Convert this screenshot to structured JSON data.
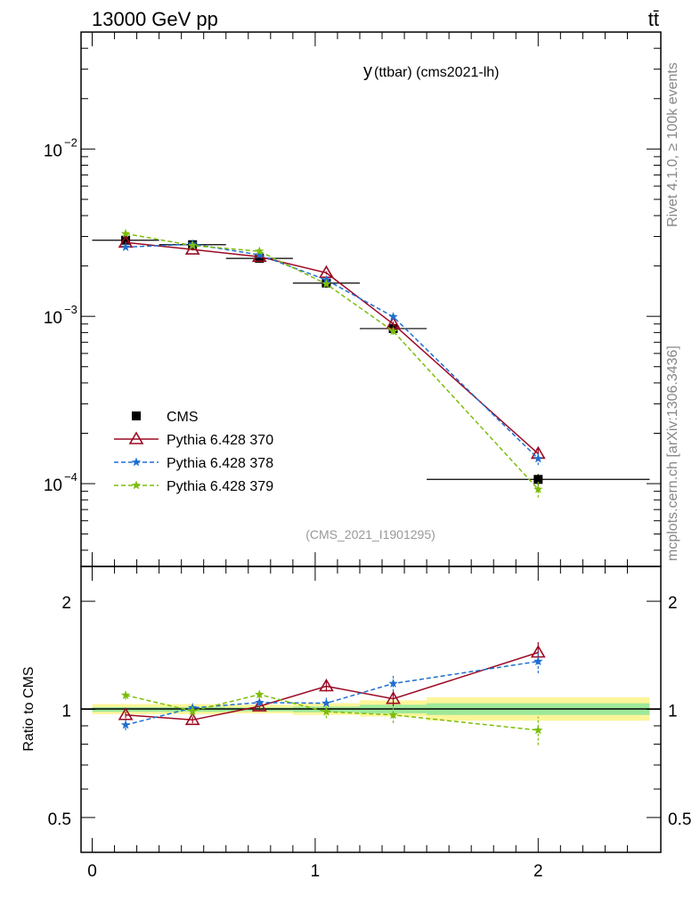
{
  "header": {
    "energy_label": "13000 GeV pp",
    "process_label": "tt̄",
    "side_info": "Rivet 4.1.0, ≥ 100k events",
    "side_source": "mcplots.cern.ch [arXiv:1306.3436]"
  },
  "chart_data": [
    {
      "type": "line",
      "panel": "main",
      "title_main": "y",
      "title_sub": "(ttbar) (cms2021-lh)",
      "watermark": "(CMS_2021_I1901295)",
      "yscale": "log",
      "ylim": [
        3.2e-05,
        0.05
      ],
      "xlim": [
        -0.05,
        2.55
      ],
      "yticks": [
        {
          "value": 0.01,
          "base": "10",
          "exp": "−2"
        },
        {
          "value": 0.001,
          "base": "10",
          "exp": "−3"
        },
        {
          "value": 0.0001,
          "base": "10",
          "exp": "−4"
        }
      ],
      "legend_position": "middle-left",
      "series": [
        {
          "name": "CMS",
          "kind": "data",
          "color": "#000000",
          "marker": "square",
          "x": [
            0.15,
            0.45,
            0.75,
            1.05,
            1.35,
            2.0
          ],
          "values": [
            0.00285,
            0.00268,
            0.00222,
            0.00158,
            0.000845,
            0.000106
          ],
          "errors": [
            6e-05,
            5e-05,
            5e-05,
            4e-05,
            3e-05,
            8e-06
          ],
          "x_err": [
            0.15,
            0.15,
            0.15,
            0.15,
            0.15,
            0.5
          ]
        },
        {
          "name": "Pythia 6.428 370",
          "kind": "mc",
          "color": "#9b0a24",
          "marker": "triangle",
          "dash": "",
          "x": [
            0.15,
            0.45,
            0.75,
            1.05,
            1.35,
            2.0
          ],
          "values": [
            0.00276,
            0.00251,
            0.00227,
            0.00182,
            0.0009,
            0.000151
          ],
          "errors": [
            4e-05,
            4e-05,
            4e-05,
            4e-05,
            3e-05,
            1e-05
          ]
        },
        {
          "name": "Pythia 6.428 378",
          "kind": "mc",
          "color": "#1f6fd1",
          "marker": "star",
          "dash": "5,3",
          "x": [
            0.15,
            0.45,
            0.75,
            1.05,
            1.35,
            2.0
          ],
          "values": [
            0.00259,
            0.0027,
            0.00233,
            0.00165,
            0.000995,
            0.000141
          ],
          "errors": [
            7e-05,
            7e-05,
            6e-05,
            5e-05,
            4e-05,
            1.2e-05
          ]
        },
        {
          "name": "Pythia 6.428 379",
          "kind": "mc",
          "color": "#7cbd0b",
          "marker": "star",
          "dash": "5,3",
          "x": [
            0.15,
            0.45,
            0.75,
            1.05,
            1.35,
            2.0
          ],
          "values": [
            0.00312,
            0.00265,
            0.00245,
            0.00156,
            0.000815,
            9.25e-05
          ],
          "errors": [
            7e-05,
            7e-05,
            6e-05,
            5e-05,
            4e-05,
            1e-05
          ]
        }
      ]
    },
    {
      "type": "line",
      "panel": "ratio",
      "ylabel": "Ratio to CMS",
      "yscale": "log",
      "ylim": [
        0.4,
        2.5
      ],
      "xlim": [
        -0.05,
        2.55
      ],
      "yticks": [
        {
          "value": 0.5,
          "label": "0.5"
        },
        {
          "value": 1,
          "label": "1"
        },
        {
          "value": 2,
          "label": "2"
        }
      ],
      "xticks": [
        {
          "value": 0,
          "label": "0"
        },
        {
          "value": 1,
          "label": "1"
        },
        {
          "value": 2,
          "label": "2"
        }
      ],
      "bands": [
        {
          "x0": 0.0,
          "x1": 0.3,
          "yellow": [
            0.97,
            1.035
          ],
          "green": [
            0.985,
            1.015
          ]
        },
        {
          "x0": 0.3,
          "x1": 0.6,
          "yellow": [
            0.97,
            1.035
          ],
          "green": [
            0.985,
            1.015
          ]
        },
        {
          "x0": 0.6,
          "x1": 0.9,
          "yellow": [
            0.975,
            1.03
          ],
          "green": [
            0.988,
            1.012
          ]
        },
        {
          "x0": 0.9,
          "x1": 1.2,
          "yellow": [
            0.965,
            1.04
          ],
          "green": [
            0.982,
            1.018
          ]
        },
        {
          "x0": 1.2,
          "x1": 1.5,
          "yellow": [
            0.955,
            1.06
          ],
          "green": [
            0.975,
            1.03
          ]
        },
        {
          "x0": 1.5,
          "x1": 2.5,
          "yellow": [
            0.93,
            1.08
          ],
          "green": [
            0.965,
            1.04
          ]
        }
      ],
      "series": [
        {
          "name": "Pythia 6.428 370",
          "color": "#9b0a24",
          "marker": "triangle",
          "dash": "",
          "x": [
            0.15,
            0.45,
            0.75,
            1.05,
            1.35,
            2.0
          ],
          "values": [
            0.965,
            0.935,
            1.02,
            1.16,
            1.07,
            1.44
          ],
          "errors": [
            0.02,
            0.02,
            0.025,
            0.04,
            0.05,
            0.1
          ]
        },
        {
          "name": "Pythia 6.428 378",
          "color": "#1f6fd1",
          "marker": "star",
          "dash": "5,3",
          "x": [
            0.15,
            0.45,
            0.75,
            1.05,
            1.35,
            2.0
          ],
          "values": [
            0.905,
            1.01,
            1.045,
            1.04,
            1.18,
            1.36
          ],
          "errors": [
            0.03,
            0.03,
            0.03,
            0.04,
            0.06,
            0.1
          ]
        },
        {
          "name": "Pythia 6.428 379",
          "color": "#7cbd0b",
          "marker": "star",
          "dash": "5,3",
          "x": [
            0.15,
            0.45,
            0.75,
            1.05,
            1.35,
            2.0
          ],
          "values": [
            1.095,
            0.99,
            1.1,
            0.985,
            0.965,
            0.875
          ],
          "errors": [
            0.03,
            0.03,
            0.03,
            0.04,
            0.05,
            0.08
          ]
        }
      ]
    }
  ]
}
